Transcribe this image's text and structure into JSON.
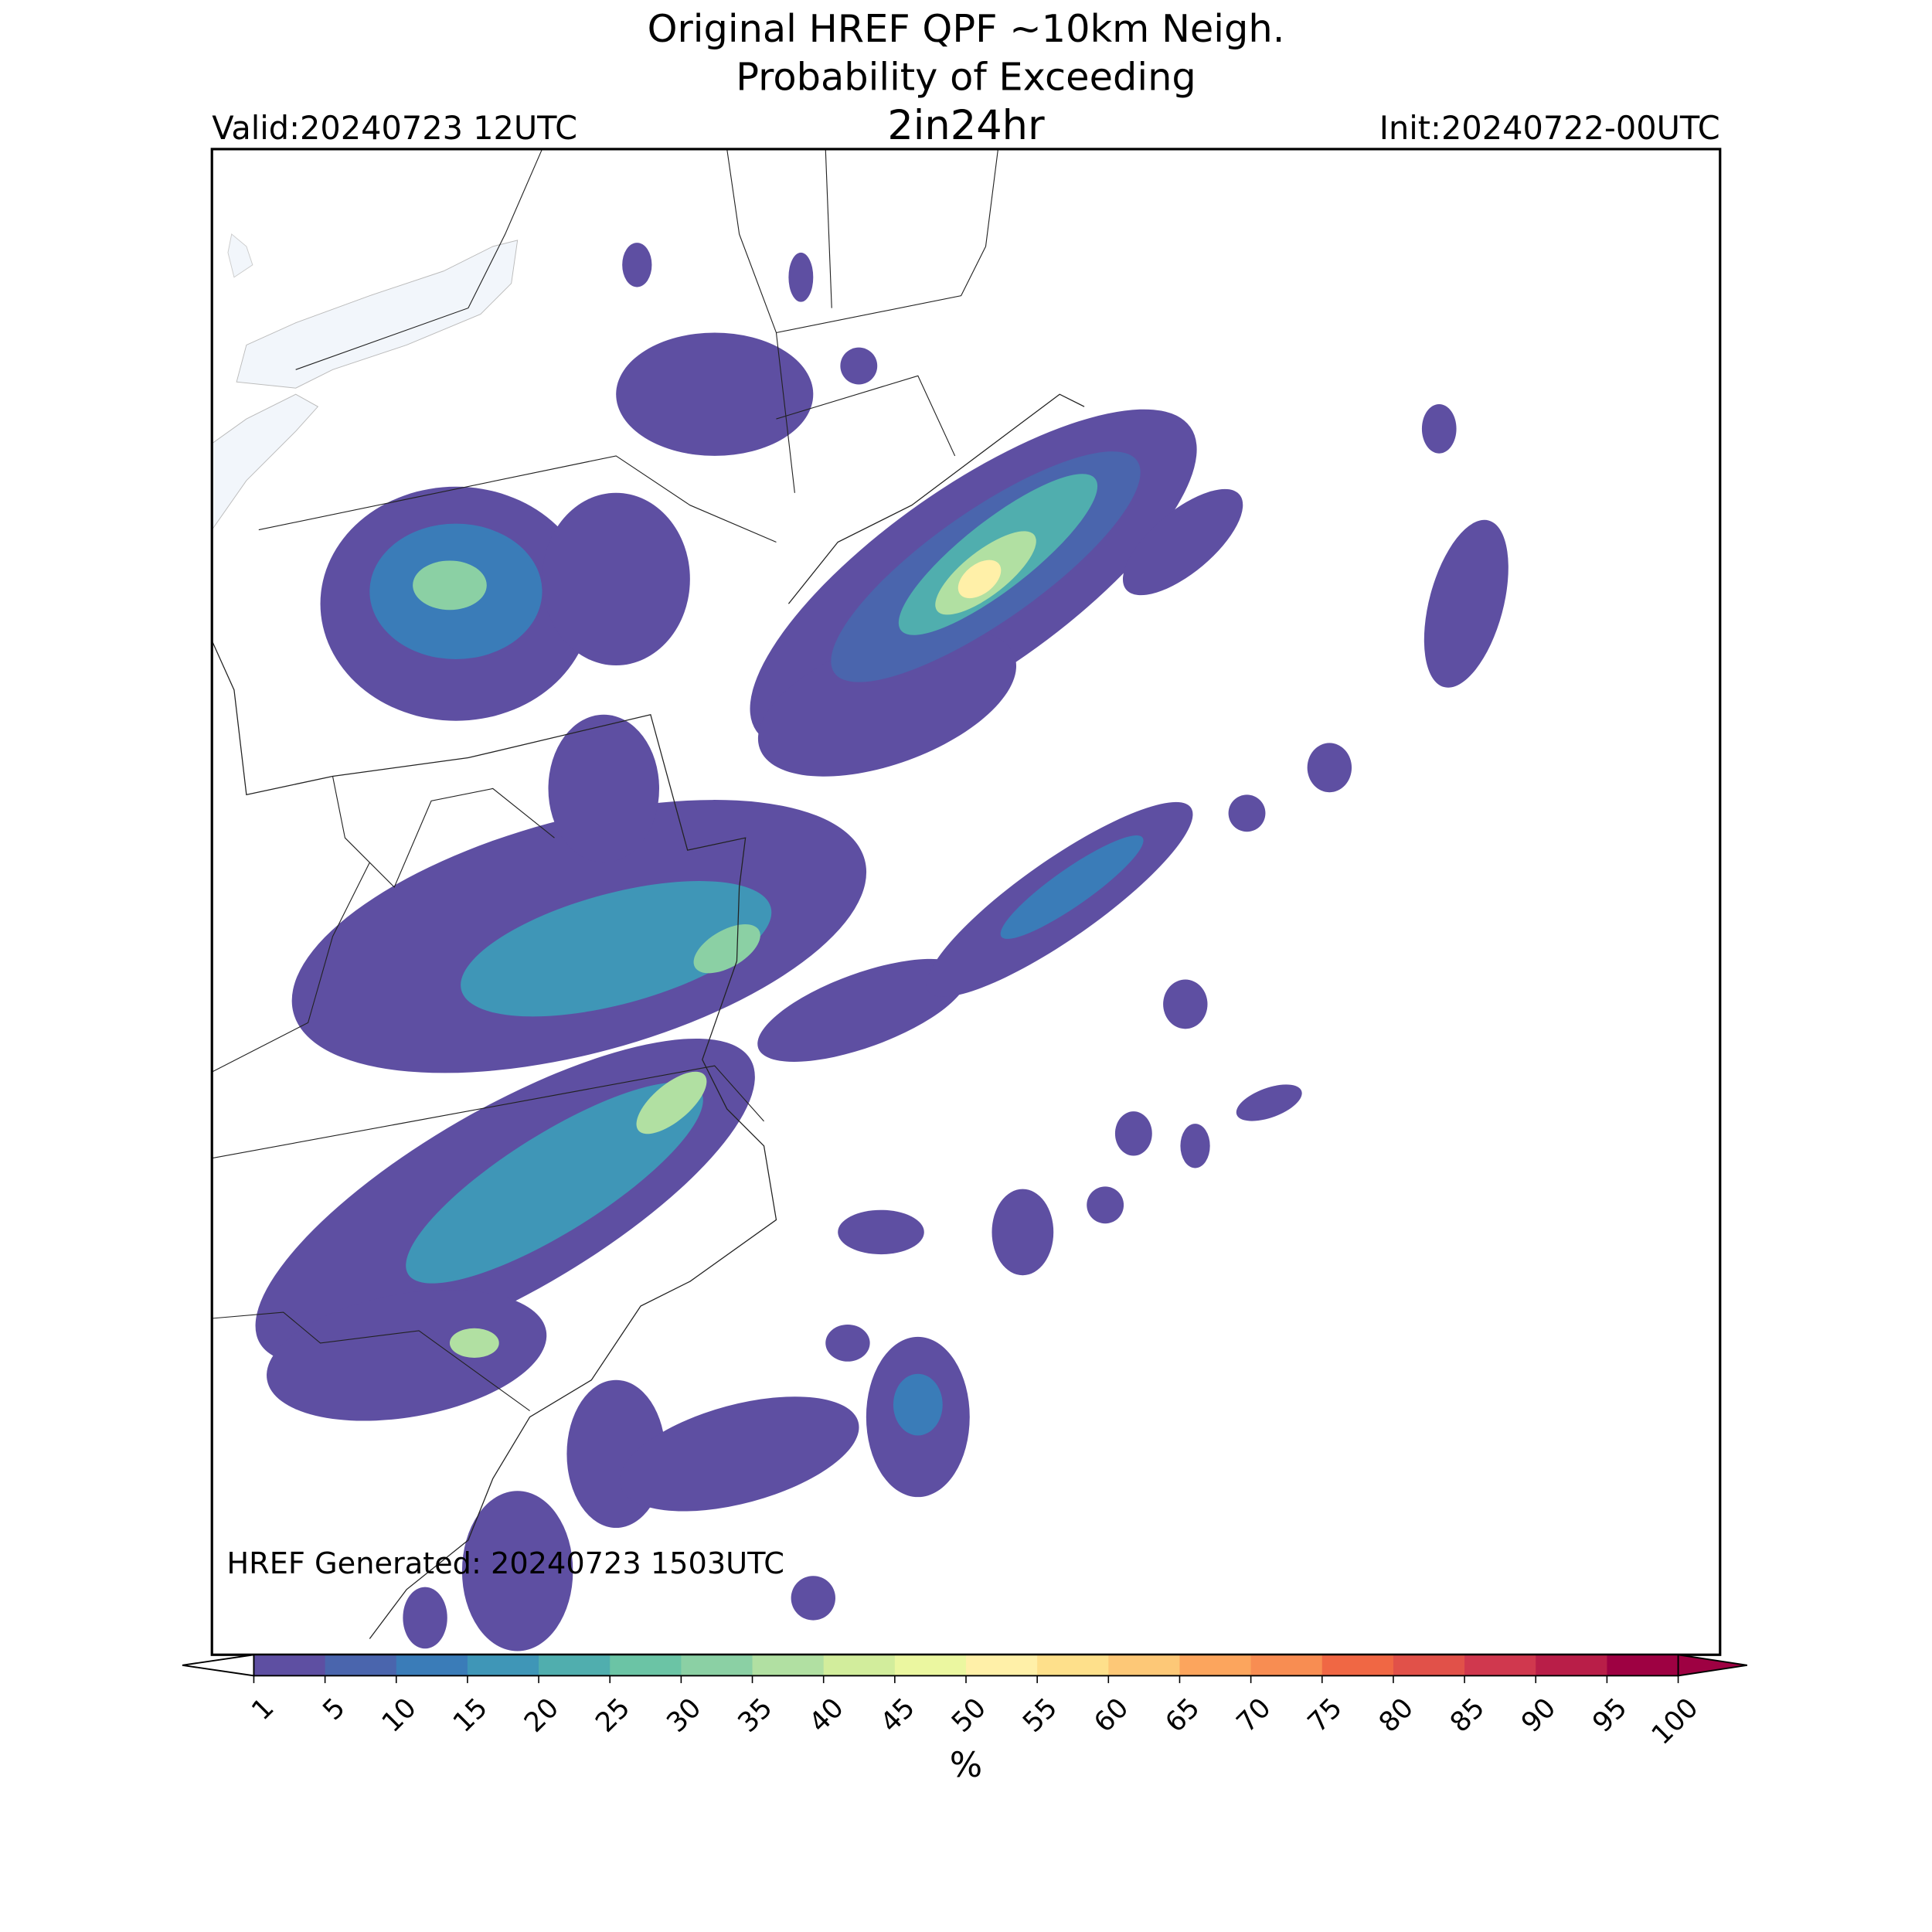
{
  "title": [
    "Original HREF QPF ~10km Neigh.",
    "Probability of Exceeding",
    "2in24hr"
  ],
  "valid": "Valid:20240723 12UTC",
  "init": "Init:20240722-00UTC",
  "generated": "HREF Generated: 20240723 1503UTC",
  "colorbar": {
    "label": "%",
    "levels": [
      1,
      5,
      10,
      15,
      20,
      25,
      30,
      35,
      40,
      45,
      50,
      55,
      60,
      65,
      70,
      75,
      80,
      85,
      90,
      95,
      100
    ],
    "colors": [
      "#5e4fa2",
      "#4a65ad",
      "#3a7cb8",
      "#3f96b7",
      "#50aeae",
      "#6bc4a5",
      "#8bd0a4",
      "#b1e0a2",
      "#d2ed9c",
      "#ebf7a0",
      "#fff0a8",
      "#fee08b",
      "#fdc877",
      "#fca55d",
      "#f88d52",
      "#f06744",
      "#e15149",
      "#d0384e",
      "#b91e48",
      "#9e0142"
    ],
    "under_color": "#ffffff",
    "over_color": "#9e0142"
  }
}
